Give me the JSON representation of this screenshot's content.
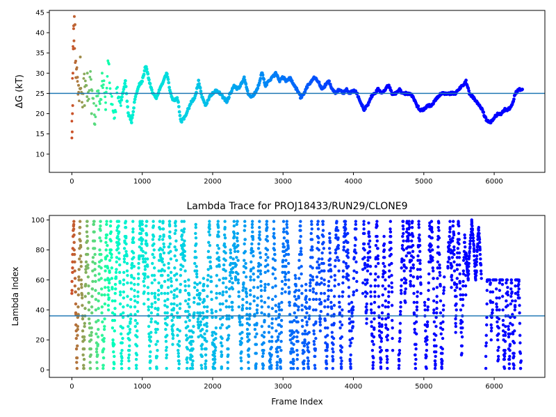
{
  "chart_data": [
    {
      "type": "scatter",
      "title": "",
      "xlabel": "",
      "ylabel": "ΔG (kT)",
      "xlim": [
        -320,
        6720
      ],
      "ylim": [
        5.5,
        45.5
      ],
      "xticks": [
        0,
        1000,
        2000,
        3000,
        4000,
        5000,
        6000
      ],
      "yticks": [
        10,
        15,
        20,
        25,
        30,
        35,
        40,
        45
      ],
      "hline": 25,
      "hline_color": "#1f77b4",
      "colormap": "rainbow",
      "grid": false,
      "legend": "none",
      "trace_anchors": [
        [
          0,
          20
        ],
        [
          10,
          30
        ],
        [
          20,
          38
        ],
        [
          30,
          44
        ],
        [
          40,
          35
        ],
        [
          55,
          28
        ],
        [
          70,
          32
        ],
        [
          90,
          26
        ],
        [
          110,
          24
        ],
        [
          130,
          28
        ],
        [
          150,
          22
        ],
        [
          170,
          30
        ],
        [
          200,
          26
        ],
        [
          230,
          23
        ],
        [
          260,
          29
        ],
        [
          300,
          25
        ],
        [
          330,
          18
        ],
        [
          360,
          26
        ],
        [
          400,
          23
        ],
        [
          440,
          28
        ],
        [
          480,
          24
        ],
        [
          520,
          33
        ],
        [
          560,
          24
        ],
        [
          600,
          17
        ],
        [
          640,
          26
        ],
        [
          700,
          23
        ],
        [
          760,
          28
        ],
        [
          800,
          20
        ],
        [
          850,
          18
        ],
        [
          900,
          24
        ],
        [
          950,
          27
        ],
        [
          1000,
          28
        ],
        [
          1050,
          32
        ],
        [
          1100,
          28
        ],
        [
          1150,
          25
        ],
        [
          1200,
          24
        ],
        [
          1250,
          26
        ],
        [
          1300,
          28
        ],
        [
          1350,
          30
        ],
        [
          1400,
          25
        ],
        [
          1450,
          23
        ],
        [
          1500,
          24
        ],
        [
          1550,
          18
        ],
        [
          1600,
          19
        ],
        [
          1650,
          21
        ],
        [
          1700,
          23
        ],
        [
          1750,
          24
        ],
        [
          1800,
          28
        ],
        [
          1850,
          24
        ],
        [
          1900,
          22
        ],
        [
          1950,
          24
        ],
        [
          2000,
          25
        ],
        [
          2050,
          26
        ],
        [
          2100,
          25
        ],
        [
          2150,
          24
        ],
        [
          2200,
          23
        ],
        [
          2250,
          25
        ],
        [
          2300,
          27
        ],
        [
          2350,
          26
        ],
        [
          2400,
          27
        ],
        [
          2450,
          29
        ],
        [
          2500,
          25
        ],
        [
          2550,
          24
        ],
        [
          2600,
          25
        ],
        [
          2650,
          27
        ],
        [
          2700,
          30
        ],
        [
          2750,
          27
        ],
        [
          2800,
          28
        ],
        [
          2850,
          29
        ],
        [
          2900,
          30
        ],
        [
          2950,
          28
        ],
        [
          3000,
          29
        ],
        [
          3050,
          28
        ],
        [
          3100,
          29
        ],
        [
          3150,
          27
        ],
        [
          3200,
          26
        ],
        [
          3250,
          24
        ],
        [
          3300,
          25
        ],
        [
          3350,
          27
        ],
        [
          3400,
          28
        ],
        [
          3450,
          29
        ],
        [
          3500,
          28
        ],
        [
          3550,
          26
        ],
        [
          3600,
          27
        ],
        [
          3650,
          28
        ],
        [
          3700,
          26
        ],
        [
          3750,
          25
        ],
        [
          3800,
          26
        ],
        [
          3850,
          25
        ],
        [
          3900,
          26
        ],
        [
          3950,
          25
        ],
        [
          4000,
          26
        ],
        [
          4050,
          25
        ],
        [
          4100,
          23
        ],
        [
          4150,
          21
        ],
        [
          4200,
          22
        ],
        [
          4250,
          24
        ],
        [
          4300,
          25
        ],
        [
          4350,
          26
        ],
        [
          4400,
          25
        ],
        [
          4450,
          26
        ],
        [
          4500,
          27
        ],
        [
          4550,
          25
        ],
        [
          4600,
          25
        ],
        [
          4650,
          26
        ],
        [
          4700,
          25
        ],
        [
          4750,
          25
        ],
        [
          4800,
          25
        ],
        [
          4850,
          24
        ],
        [
          4900,
          22
        ],
        [
          4950,
          21
        ],
        [
          5000,
          21
        ],
        [
          5050,
          22
        ],
        [
          5100,
          22
        ],
        [
          5150,
          23
        ],
        [
          5200,
          24
        ],
        [
          5250,
          25
        ],
        [
          5300,
          25
        ],
        [
          5350,
          25
        ],
        [
          5400,
          25
        ],
        [
          5450,
          25
        ],
        [
          5500,
          26
        ],
        [
          5550,
          27
        ],
        [
          5600,
          28
        ],
        [
          5650,
          25
        ],
        [
          5700,
          24
        ],
        [
          5750,
          23
        ],
        [
          5800,
          22
        ],
        [
          5850,
          20
        ],
        [
          5900,
          18
        ],
        [
          5950,
          18
        ],
        [
          6000,
          19
        ],
        [
          6050,
          20
        ],
        [
          6100,
          20
        ],
        [
          6150,
          21
        ],
        [
          6200,
          21
        ],
        [
          6250,
          22
        ],
        [
          6300,
          25
        ],
        [
          6350,
          26
        ],
        [
          6400,
          26
        ]
      ],
      "burn_in_scatter": [
        [
          0,
          14
        ],
        [
          5,
          15.5
        ],
        [
          8,
          20
        ],
        [
          12,
          22
        ],
        [
          15,
          30
        ],
        [
          20,
          36
        ],
        [
          25,
          41
        ],
        [
          30,
          38
        ],
        [
          35,
          44
        ],
        [
          45,
          42
        ],
        [
          55,
          33
        ],
        [
          65,
          31
        ],
        [
          80,
          29
        ],
        [
          95,
          27
        ],
        [
          120,
          34
        ],
        [
          140,
          25
        ],
        [
          180,
          22
        ],
        [
          220,
          30
        ],
        [
          280,
          20
        ],
        [
          320,
          17.5
        ],
        [
          380,
          21
        ],
        [
          430,
          30
        ],
        [
          480,
          21
        ]
      ]
    },
    {
      "type": "scatter",
      "title": "Lambda Trace for PROJ18433/RUN29/CLONE9",
      "xlabel": "Frame Index",
      "ylabel": "Lambda Index",
      "xlim": [
        -320,
        6720
      ],
      "ylim": [
        -5,
        103
      ],
      "xticks": [
        0,
        1000,
        2000,
        3000,
        4000,
        5000,
        6000
      ],
      "yticks": [
        0,
        20,
        40,
        60,
        80,
        100
      ],
      "hline": 36,
      "hline_color": "#1f77b4",
      "colormap": "rainbow",
      "grid": false,
      "legend": "none",
      "x_range": [
        0,
        6400
      ],
      "lambda_range": [
        0,
        100
      ]
    }
  ]
}
